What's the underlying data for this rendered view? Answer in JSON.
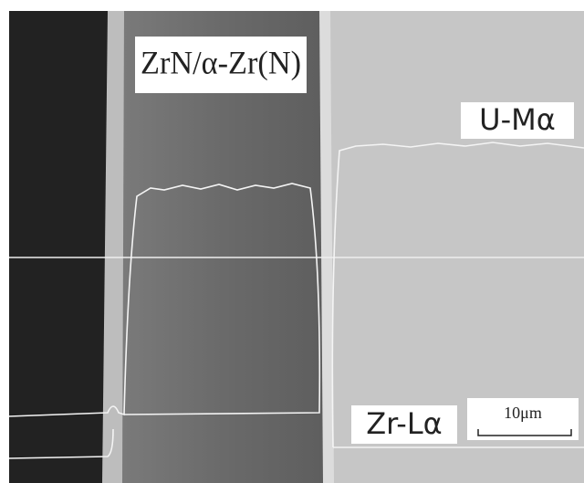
{
  "labels": {
    "layer": "ZrN/α-Zr(N)",
    "u_line": "U-Mα",
    "zr_line": "Zr-Lα",
    "scale_bar": "10μm"
  }
}
